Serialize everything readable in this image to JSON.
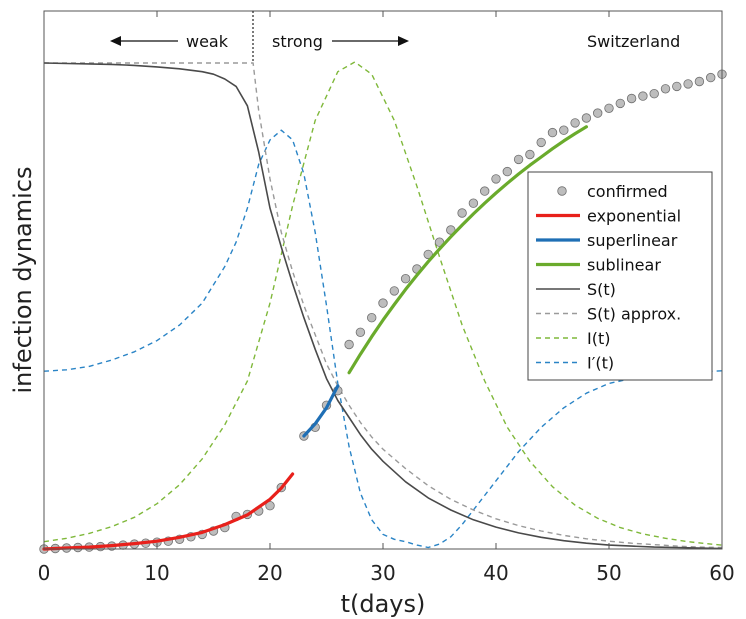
{
  "chart_data": {
    "type": "line",
    "title": "",
    "xlabel": "t(days)",
    "ylabel": "infection dynamics",
    "xlim": [
      0,
      60
    ],
    "x_ticks": [
      0,
      10,
      20,
      30,
      40,
      50,
      60
    ],
    "y_ticks_visible": false,
    "grid": false,
    "legend_position": "right",
    "annotations": {
      "country": "Switzerland",
      "weak": "weak",
      "strong": "strong"
    },
    "colors": {
      "confirmed": "#bdbdbd",
      "exponential": "#e8201b",
      "superlinear": "#1f6fb5",
      "sublinear": "#6aab2c",
      "S": "#4a4a4a",
      "S_approx": "#9a9a9a",
      "I": "#7fb83a",
      "Iprime": "#2a84c6"
    },
    "series": [
      {
        "name": "confirmed",
        "style": "markers",
        "x": [
          0,
          1,
          2,
          3,
          4,
          5,
          6,
          7,
          8,
          9,
          10,
          11,
          12,
          13,
          14,
          15,
          16,
          17,
          18,
          19,
          20,
          21,
          23,
          24,
          25,
          26,
          27,
          28,
          29,
          30,
          31,
          32,
          33,
          34,
          35,
          36,
          37,
          38,
          39,
          40,
          41,
          42,
          43,
          44,
          45,
          46,
          47,
          48,
          49,
          50,
          51,
          52,
          53,
          54,
          55,
          56,
          57,
          58,
          59,
          60
        ],
        "y": [
          0.0,
          0.001,
          0.002,
          0.003,
          0.004,
          0.005,
          0.006,
          0.008,
          0.01,
          0.012,
          0.014,
          0.016,
          0.02,
          0.025,
          0.03,
          0.037,
          0.044,
          0.067,
          0.071,
          0.078,
          0.089,
          0.126,
          0.232,
          0.25,
          0.295,
          0.325,
          0.42,
          0.445,
          0.475,
          0.505,
          0.53,
          0.555,
          0.575,
          0.605,
          0.63,
          0.655,
          0.69,
          0.71,
          0.735,
          0.76,
          0.775,
          0.8,
          0.81,
          0.835,
          0.855,
          0.86,
          0.875,
          0.885,
          0.895,
          0.905,
          0.915,
          0.925,
          0.93,
          0.935,
          0.945,
          0.95,
          0.955,
          0.96,
          0.968,
          0.975
        ]
      },
      {
        "name": "exponential",
        "style": "solid",
        "x": [
          0,
          2,
          4,
          6,
          8,
          10,
          12,
          14,
          16,
          18,
          20,
          21,
          22
        ],
        "y": [
          0.0,
          0.002,
          0.004,
          0.007,
          0.011,
          0.016,
          0.024,
          0.034,
          0.05,
          0.07,
          0.102,
          0.125,
          0.154
        ]
      },
      {
        "name": "superlinear",
        "style": "solid",
        "x": [
          23,
          24,
          25,
          26
        ],
        "y": [
          0.232,
          0.257,
          0.29,
          0.335
        ]
      },
      {
        "name": "sublinear",
        "style": "solid",
        "x": [
          27,
          28,
          29,
          30,
          31,
          32,
          33,
          34,
          35,
          36,
          37,
          38,
          39,
          40,
          41,
          42,
          43,
          44,
          45,
          46,
          47,
          48
        ],
        "y": [
          0.362,
          0.4,
          0.436,
          0.47,
          0.502,
          0.533,
          0.562,
          0.59,
          0.616,
          0.641,
          0.665,
          0.688,
          0.71,
          0.731,
          0.751,
          0.77,
          0.788,
          0.805,
          0.822,
          0.838,
          0.853,
          0.867
        ]
      },
      {
        "name": "S(t)",
        "style": "solid",
        "x": [
          0,
          2,
          4,
          6,
          8,
          10,
          12,
          14,
          15,
          16,
          17,
          18,
          19,
          20,
          21,
          22,
          23,
          24,
          25,
          26,
          27,
          28,
          29,
          30,
          32,
          34,
          36,
          38,
          40,
          42,
          44,
          46,
          48,
          50,
          52,
          54,
          56,
          58,
          60
        ],
        "y": [
          0.998,
          0.997,
          0.996,
          0.995,
          0.993,
          0.99,
          0.986,
          0.98,
          0.975,
          0.965,
          0.95,
          0.91,
          0.815,
          0.7,
          0.62,
          0.545,
          0.475,
          0.41,
          0.35,
          0.305,
          0.27,
          0.235,
          0.205,
          0.18,
          0.138,
          0.105,
          0.08,
          0.06,
          0.045,
          0.033,
          0.024,
          0.017,
          0.012,
          0.008,
          0.006,
          0.004,
          0.003,
          0.002,
          0.001
        ]
      },
      {
        "name": "S(t) approx.",
        "style": "dashed",
        "x": [
          0,
          6,
          12,
          18.5,
          19,
          20,
          21,
          22,
          23,
          24,
          25,
          26,
          27,
          28,
          29,
          30,
          32,
          34,
          36,
          38,
          40,
          42,
          44,
          46,
          48,
          50,
          52,
          54,
          56,
          58,
          60
        ],
        "y": [
          0.998,
          0.998,
          0.998,
          0.998,
          0.9,
          0.76,
          0.65,
          0.57,
          0.5,
          0.44,
          0.38,
          0.335,
          0.295,
          0.26,
          0.23,
          0.205,
          0.165,
          0.13,
          0.102,
          0.08,
          0.062,
          0.048,
          0.037,
          0.028,
          0.021,
          0.016,
          0.012,
          0.009,
          0.006,
          0.004,
          0.003
        ]
      },
      {
        "name": "I(t)",
        "style": "dashed",
        "x": [
          0,
          2,
          4,
          6,
          8,
          10,
          12,
          14,
          16,
          18,
          20,
          22,
          24,
          26,
          27.5,
          29,
          31,
          33,
          35,
          37,
          39,
          41,
          43,
          45,
          47,
          49,
          51,
          53,
          55,
          57,
          59,
          60
        ],
        "y": [
          0.015,
          0.022,
          0.032,
          0.046,
          0.065,
          0.093,
          0.132,
          0.185,
          0.255,
          0.345,
          0.505,
          0.705,
          0.88,
          0.98,
          1.0,
          0.975,
          0.88,
          0.745,
          0.6,
          0.46,
          0.345,
          0.25,
          0.18,
          0.128,
          0.09,
          0.063,
          0.044,
          0.031,
          0.022,
          0.015,
          0.01,
          0.008
        ]
      },
      {
        "name": "I′(t)",
        "style": "dashed",
        "x": [
          0,
          2,
          4,
          6,
          8,
          10,
          12,
          14,
          16,
          17,
          18,
          19,
          20,
          21,
          22,
          23,
          24,
          25,
          26,
          27,
          28,
          29,
          30,
          31,
          32,
          33,
          34,
          35,
          36,
          37,
          38,
          40,
          42,
          44,
          46,
          48,
          50,
          52,
          54,
          56,
          58,
          60
        ],
        "y": [
          0.365,
          0.368,
          0.375,
          0.388,
          0.405,
          0.428,
          0.46,
          0.505,
          0.58,
          0.63,
          0.7,
          0.79,
          0.84,
          0.86,
          0.84,
          0.77,
          0.65,
          0.5,
          0.34,
          0.21,
          0.115,
          0.06,
          0.03,
          0.02,
          0.015,
          0.008,
          0.003,
          0.01,
          0.025,
          0.05,
          0.08,
          0.14,
          0.2,
          0.25,
          0.29,
          0.32,
          0.34,
          0.35,
          0.357,
          0.362,
          0.364,
          0.366
        ]
      }
    ]
  }
}
